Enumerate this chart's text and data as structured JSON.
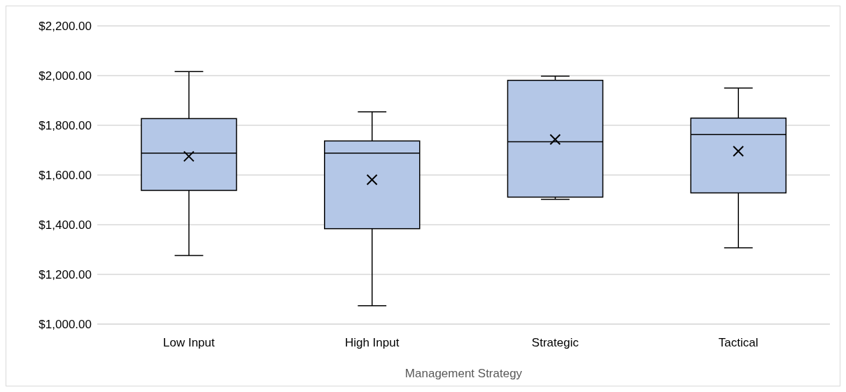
{
  "chart_data": {
    "type": "box",
    "xlabel": "Management Strategy",
    "categories": [
      "Low Input",
      "High Input",
      "Strategic",
      "Tactical"
    ],
    "color": "#b4c7e7",
    "boxes": [
      {
        "low": 1276,
        "q1": 1538,
        "median": 1688,
        "q3": 1827,
        "high": 2016,
        "mean": 1675
      },
      {
        "low": 1074,
        "q1": 1384,
        "median": 1688,
        "q3": 1737,
        "high": 1854,
        "mean": 1581
      },
      {
        "low": 1502,
        "q1": 1511,
        "median": 1734,
        "q3": 1981,
        "high": 1998,
        "mean": 1743
      },
      {
        "low": 1307,
        "q1": 1528,
        "median": 1763,
        "q3": 1829,
        "high": 1950,
        "mean": 1696
      }
    ],
    "ylim": [
      1000,
      2200
    ],
    "yticks": [
      {
        "value": 1000,
        "label": "$1,000.00"
      },
      {
        "value": 1200,
        "label": "$1,200.00"
      },
      {
        "value": 1400,
        "label": "$1,400.00"
      },
      {
        "value": 1600,
        "label": "$1,600.00"
      },
      {
        "value": 1800,
        "label": "$1,800.00"
      },
      {
        "value": 2000,
        "label": "$2,000.00"
      },
      {
        "value": 2200,
        "label": "$2,200.00"
      }
    ],
    "grid": "y",
    "marker": "cross",
    "legend": false
  }
}
